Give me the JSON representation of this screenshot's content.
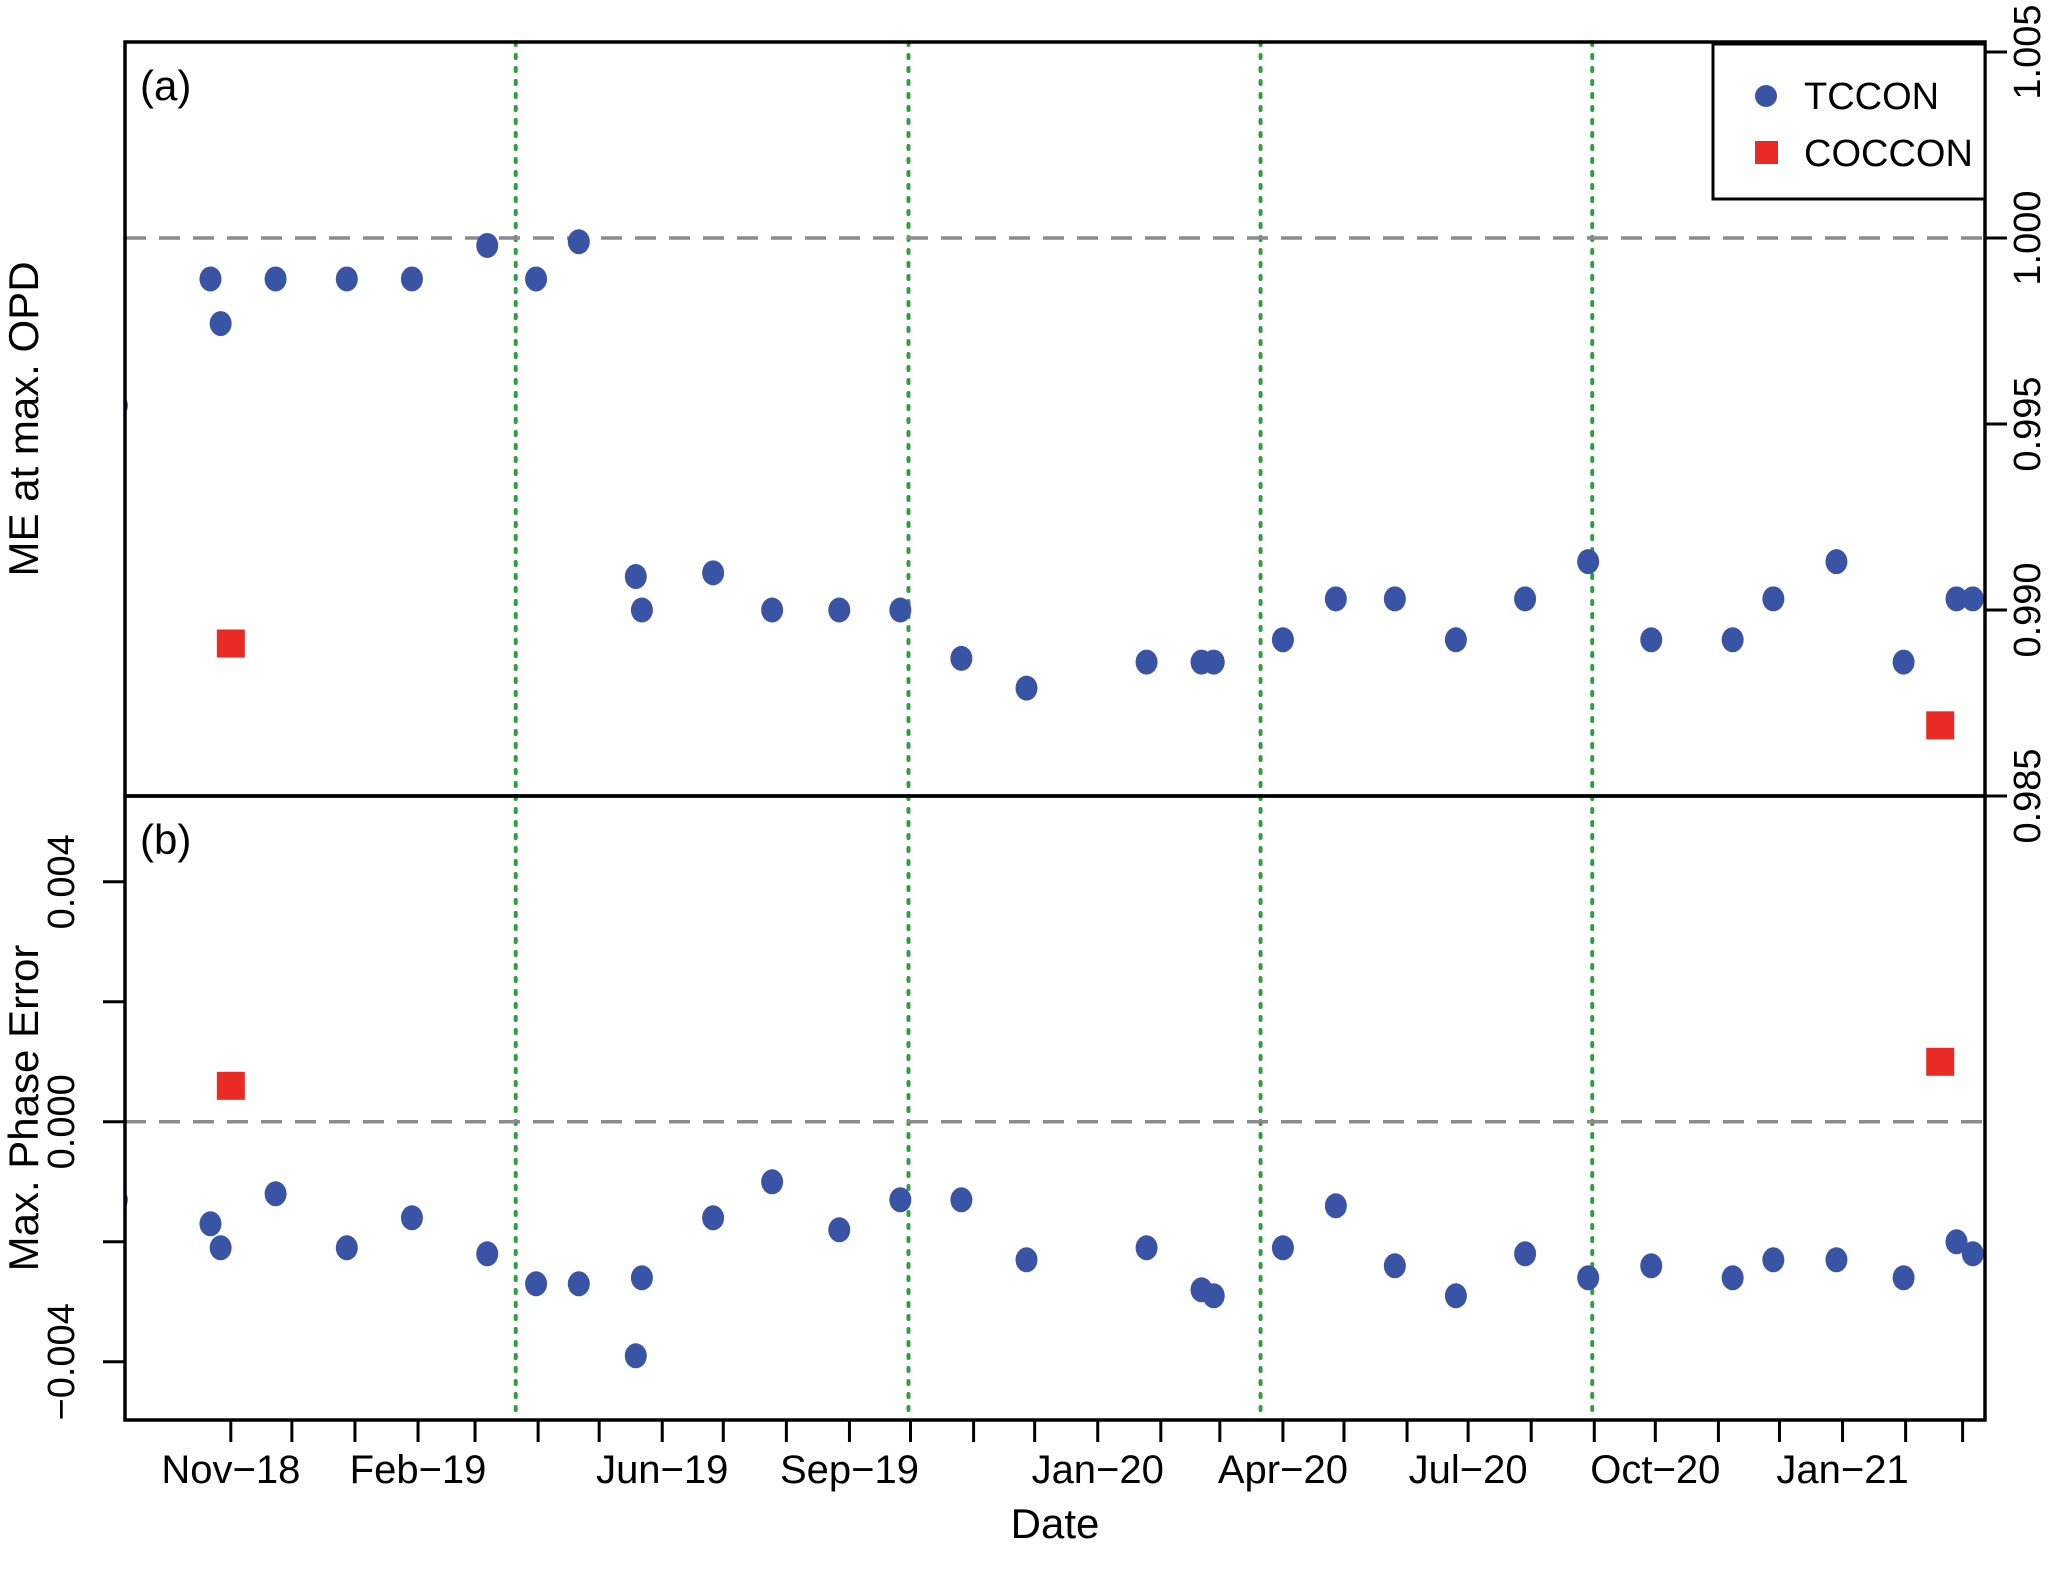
{
  "figure": {
    "xlabel": "Date",
    "x_range": [
      "2018-09-10",
      "2021-03-12"
    ],
    "x_labeled_ticks": [
      {
        "date": "2018-11-01",
        "label": "Nov−18"
      },
      {
        "date": "2019-02-01",
        "label": "Feb−19"
      },
      {
        "date": "2019-06-01",
        "label": "Jun−19"
      },
      {
        "date": "2019-09-01",
        "label": "Sep−19"
      },
      {
        "date": "2020-01-01",
        "label": "Jan−20"
      },
      {
        "date": "2020-04-01",
        "label": "Apr−20"
      },
      {
        "date": "2020-07-01",
        "label": "Jul−20"
      },
      {
        "date": "2020-10-01",
        "label": "Oct−20"
      },
      {
        "date": "2021-01-01",
        "label": "Jan−21"
      }
    ],
    "event_vlines": [
      "2019-03-21",
      "2019-09-30",
      "2020-03-21",
      "2020-08-31"
    ],
    "panels": [
      {
        "id": "a",
        "label": "(a)",
        "ylabel": "ME at max. OPD",
        "y_axis_side": "right",
        "y_range": [
          0.985,
          1.00527
        ],
        "y_ticks": [
          {
            "v": 0.985,
            "label": "0.985"
          },
          {
            "v": 0.99,
            "label": "0.990"
          },
          {
            "v": 0.995,
            "label": "0.995"
          },
          {
            "v": 1.0,
            "label": "1.000"
          },
          {
            "v": 1.005,
            "label": "1.005"
          }
        ],
        "dashed_hline": 1.0
      },
      {
        "id": "b",
        "label": "(b)",
        "ylabel": "Max. Phase Error",
        "y_axis_side": "left",
        "y_range": [
          -0.00497,
          0.00543
        ],
        "y_ticks": [
          {
            "v": 0.004,
            "label": "0.004"
          },
          {
            "v": 0.002,
            "label": null
          },
          {
            "v": 0.0,
            "label": "0.000"
          },
          {
            "v": -0.002,
            "label": null
          },
          {
            "v": -0.004,
            "label": "−0.004"
          }
        ],
        "dashed_hline": 0.0
      }
    ]
  },
  "legend": {
    "items": [
      {
        "label": "TCCON",
        "marker": "circle",
        "color": "#3a54a5"
      },
      {
        "label": "COCCON",
        "marker": "square",
        "color": "#ea2a25"
      }
    ]
  },
  "colors": {
    "tccon_blue": "#3a54a5",
    "coccon_red": "#ea2a25",
    "event_line_green": "#2d9e41",
    "dashed_gray": "#8b8b8b",
    "axis_black": "#000000"
  },
  "chart_data": {
    "type": "scatter",
    "title": "",
    "xlabel": "Date",
    "panel_a_ylabel": "ME at max. OPD",
    "panel_b_ylabel": "Max. Phase Error",
    "panel_a_ylim": [
      0.985,
      1.005
    ],
    "panel_b_ylim": [
      -0.004,
      0.004
    ],
    "series": [
      {
        "name": "TCCON",
        "marker": "circle",
        "color": "#3a54a5",
        "points": [
          {
            "d": "2018-09-06",
            "me": 0.9955,
            "pe": -0.0013
          },
          {
            "d": "2018-10-22",
            "me": 0.9989,
            "pe": -0.0017
          },
          {
            "d": "2018-10-27",
            "me": 0.9977,
            "pe": -0.0021
          },
          {
            "d": "2018-11-23",
            "me": 0.9989,
            "pe": -0.0012
          },
          {
            "d": "2018-12-28",
            "me": 0.9989,
            "pe": -0.0021
          },
          {
            "d": "2019-01-29",
            "me": 0.9989,
            "pe": -0.0016
          },
          {
            "d": "2019-03-07",
            "me": 0.9998,
            "pe": -0.0022
          },
          {
            "d": "2019-03-31",
            "me": 0.9989,
            "pe": -0.0027
          },
          {
            "d": "2019-04-21",
            "me": 0.9999,
            "pe": -0.0027
          },
          {
            "d": "2019-05-19",
            "me": 0.9909,
            "pe": -0.0039
          },
          {
            "d": "2019-05-22",
            "me": 0.99,
            "pe": -0.0026
          },
          {
            "d": "2019-06-26",
            "me": 0.991,
            "pe": -0.0016
          },
          {
            "d": "2019-07-25",
            "me": 0.99,
            "pe": -0.001
          },
          {
            "d": "2019-08-27",
            "me": 0.99,
            "pe": -0.0018
          },
          {
            "d": "2019-09-26",
            "me": 0.99,
            "pe": -0.0013
          },
          {
            "d": "2019-10-26",
            "me": 0.9887,
            "pe": -0.0013
          },
          {
            "d": "2019-11-27",
            "me": 0.9879,
            "pe": -0.0023
          },
          {
            "d": "2020-01-25",
            "me": 0.9886,
            "pe": -0.0021
          },
          {
            "d": "2020-02-21",
            "me": 0.9886,
            "pe": -0.0028
          },
          {
            "d": "2020-02-27",
            "me": 0.9886,
            "pe": -0.0029
          },
          {
            "d": "2020-04-01",
            "me": 0.9892,
            "pe": -0.0021
          },
          {
            "d": "2020-04-27",
            "me": 0.9903,
            "pe": -0.0014
          },
          {
            "d": "2020-05-26",
            "me": 0.9903,
            "pe": -0.0024
          },
          {
            "d": "2020-06-25",
            "me": 0.9892,
            "pe": -0.0029
          },
          {
            "d": "2020-07-29",
            "me": 0.9903,
            "pe": -0.0022
          },
          {
            "d": "2020-08-29",
            "me": 0.9913,
            "pe": -0.0026
          },
          {
            "d": "2020-09-29",
            "me": 0.9892,
            "pe": -0.0024
          },
          {
            "d": "2020-11-08",
            "me": 0.9892,
            "pe": -0.0026
          },
          {
            "d": "2020-11-28",
            "me": 0.9903,
            "pe": -0.0023
          },
          {
            "d": "2020-12-29",
            "me": 0.9913,
            "pe": -0.0023
          },
          {
            "d": "2021-01-31",
            "me": 0.9886,
            "pe": -0.0026
          },
          {
            "d": "2021-02-26",
            "me": 0.9903,
            "pe": -0.002
          },
          {
            "d": "2021-03-06",
            "me": 0.9903,
            "pe": -0.0022
          }
        ]
      },
      {
        "name": "COCCON",
        "marker": "square",
        "color": "#ea2a25",
        "points": [
          {
            "d": "2018-11-01",
            "me": 0.9891,
            "pe": 0.0006
          },
          {
            "d": "2021-02-18",
            "me": 0.9869,
            "pe": 0.001
          }
        ]
      }
    ]
  }
}
